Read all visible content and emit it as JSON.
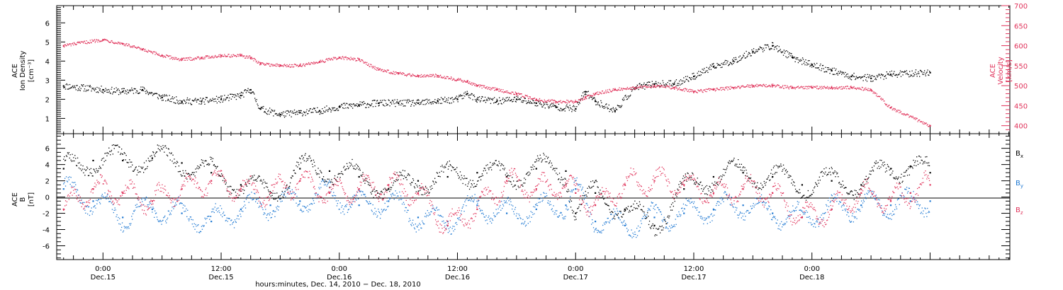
{
  "chart_data": [
    {
      "type": "scatter",
      "panel": "top",
      "ylabel_left": [
        "ACE",
        "Ion Density",
        "[cm⁻³]"
      ],
      "ylabel_right": [
        "ACE",
        "Velocity",
        "[km/s]"
      ],
      "left_ticks": [
        "1",
        "2",
        "3",
        "4",
        "5",
        "6"
      ],
      "right_ticks": [
        "400",
        "450",
        "500",
        "550",
        "600",
        "650",
        "700"
      ],
      "ylim_left": [
        0.2,
        6.9
      ],
      "ylim_right": [
        380,
        700
      ],
      "series": [
        {
          "axis": "left",
          "color": "#000000",
          "x": [
            -4,
            0,
            2,
            4,
            6,
            8,
            10,
            12,
            14,
            15,
            16,
            18,
            20,
            22,
            24,
            26,
            28,
            30,
            32,
            34,
            36,
            37,
            38,
            40,
            42,
            44,
            46,
            48,
            49,
            50,
            52,
            54,
            56,
            58,
            60,
            62,
            64,
            66,
            68,
            70,
            72,
            74,
            76,
            78,
            80,
            84
          ],
          "values": [
            2.7,
            2.5,
            2.4,
            2.5,
            2.1,
            1.9,
            1.9,
            2.0,
            2.2,
            2.5,
            1.5,
            1.2,
            1.3,
            1.4,
            1.6,
            1.7,
            1.8,
            1.8,
            1.8,
            1.9,
            2.0,
            2.3,
            2.0,
            1.9,
            2.0,
            1.8,
            1.6,
            1.5,
            2.4,
            1.9,
            1.4,
            2.6,
            2.8,
            2.8,
            3.2,
            3.7,
            4.0,
            4.5,
            4.8,
            4.2,
            3.8,
            3.5,
            3.2,
            3.1,
            3.3,
            3.4
          ]
        },
        {
          "axis": "right",
          "color": "#e0325a",
          "x": [
            -4,
            0,
            2,
            4,
            6,
            8,
            10,
            12,
            14,
            15,
            16,
            18,
            20,
            22,
            24,
            26,
            28,
            30,
            32,
            34,
            36,
            37,
            38,
            40,
            42,
            44,
            46,
            48,
            49,
            50,
            52,
            54,
            56,
            58,
            60,
            62,
            64,
            66,
            68,
            70,
            72,
            74,
            76,
            78,
            80,
            84
          ],
          "values": [
            600,
            615,
            605,
            590,
            575,
            565,
            570,
            575,
            575,
            570,
            555,
            550,
            550,
            560,
            570,
            565,
            540,
            530,
            525,
            525,
            515,
            510,
            500,
            490,
            480,
            465,
            460,
            460,
            470,
            480,
            490,
            495,
            500,
            495,
            485,
            490,
            495,
            500,
            500,
            495,
            495,
            495,
            495,
            490,
            445,
            400
          ]
        }
      ]
    },
    {
      "type": "scatter",
      "panel": "bottom",
      "ylabel": [
        "ACE",
        "B",
        "[nT]"
      ],
      "ticks": [
        "-6",
        "-4",
        "-2",
        "0",
        "2",
        "4",
        "6"
      ],
      "ylim": [
        -7.7,
        7.8
      ],
      "legend": [
        {
          "name": "B",
          "sub": "x",
          "color": "#000000"
        },
        {
          "name": "B",
          "sub": "y",
          "color": "#1e78d2"
        },
        {
          "name": "B",
          "sub": "z",
          "color": "#e0325a"
        }
      ],
      "series": [
        {
          "name": "Bx",
          "color": "#000000",
          "x": [
            -4,
            -1,
            2,
            5,
            8,
            11,
            14,
            17,
            20,
            23,
            26,
            29,
            32,
            35,
            38,
            41,
            44,
            47,
            48,
            50,
            53,
            56,
            59,
            62,
            65,
            68,
            71,
            74,
            77,
            80,
            82,
            84
          ],
          "values": [
            3.5,
            4.5,
            4.5,
            4.8,
            4.2,
            3.0,
            1.5,
            0.5,
            3.5,
            3.2,
            2.5,
            1.0,
            2.0,
            2.5,
            3.0,
            2.5,
            3.5,
            3.2,
            -2.0,
            0.5,
            -1.5,
            -3.5,
            1.0,
            2.5,
            3.0,
            2.5,
            1.5,
            2.0,
            1.5,
            3.5,
            3.8,
            3.0
          ]
        },
        {
          "name": "By",
          "color": "#1e78d2",
          "x": [
            -4,
            -1,
            2,
            5,
            8,
            11,
            14,
            17,
            20,
            23,
            26,
            29,
            32,
            35,
            38,
            41,
            44,
            47,
            48,
            50,
            53,
            56,
            59,
            62,
            65,
            68,
            71,
            74,
            77,
            80,
            82,
            84
          ],
          "values": [
            1.0,
            -0.5,
            -2.5,
            -1.5,
            -2.0,
            -3.0,
            -1.5,
            -1.0,
            -0.5,
            0.5,
            -1.0,
            -0.5,
            -2.5,
            -3.0,
            -1.0,
            -2.0,
            -1.5,
            -1.0,
            1.0,
            -3.0,
            -3.5,
            -2.5,
            -2.0,
            -1.5,
            -1.0,
            -2.0,
            -2.5,
            -1.5,
            -1.0,
            -1.0,
            -0.5,
            -0.5
          ]
        },
        {
          "name": "Bz",
          "color": "#e0325a",
          "x": [
            -4,
            -1,
            2,
            5,
            8,
            11,
            14,
            17,
            20,
            23,
            26,
            29,
            32,
            35,
            38,
            41,
            44,
            47,
            48,
            50,
            53,
            56,
            59,
            62,
            65,
            68,
            71,
            74,
            77,
            80,
            82,
            84
          ],
          "values": [
            -1.5,
            1.0,
            0.5,
            -0.5,
            1.0,
            2.0,
            1.0,
            0.5,
            2.0,
            0.5,
            1.0,
            1.5,
            0.5,
            -3.5,
            -1.5,
            2.0,
            1.0,
            1.5,
            0.5,
            -1.0,
            1.5,
            2.0,
            1.5,
            0.5,
            1.0,
            0.5,
            -2.5,
            -1.5,
            0.5,
            -0.5,
            0.5,
            1.5
          ]
        }
      ]
    }
  ],
  "x_axis": {
    "xlim": [
      -4.7,
      92.1
    ],
    "tick_labels": [
      {
        "hours": 0,
        "time": "0:00",
        "date": "Dec.15"
      },
      {
        "hours": 12,
        "time": "12:00",
        "date": "Dec.15"
      },
      {
        "hours": 24,
        "time": "0:00",
        "date": "Dec.16"
      },
      {
        "hours": 36,
        "time": "12:00",
        "date": "Dec.16"
      },
      {
        "hours": 48,
        "time": "0:00",
        "date": "Dec.17"
      },
      {
        "hours": 60,
        "time": "12:00",
        "date": "Dec.17"
      },
      {
        "hours": 72,
        "time": "0:00",
        "date": "Dec.18"
      }
    ],
    "title": "hours:minutes, Dec. 14, 2010 − Dec. 18, 2010"
  }
}
